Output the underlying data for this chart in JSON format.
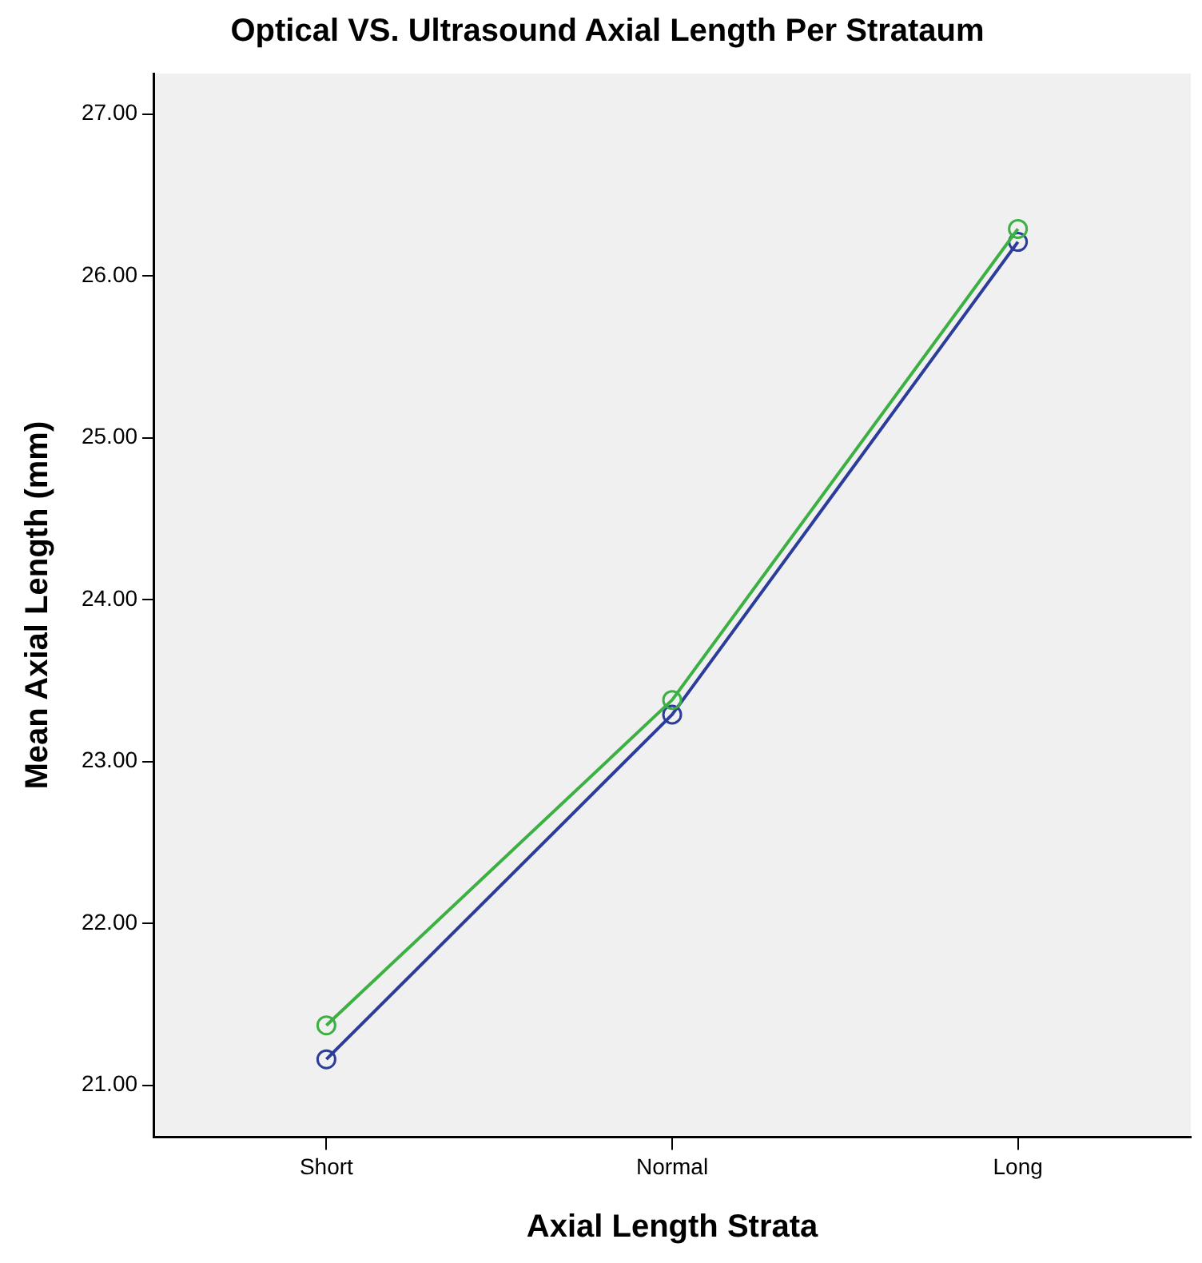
{
  "chart_data": {
    "type": "line",
    "title": "Optical VS. Ultrasound Axial Length Per Strataum",
    "xlabel": "Axial Length Strata",
    "ylabel": "Mean Axial Length (mm)",
    "categories": [
      "Short",
      "Normal",
      "Long"
    ],
    "series": [
      {
        "color": "#3cb043",
        "values": [
          21.37,
          23.38,
          26.29
        ]
      },
      {
        "color": "#2b3c9a",
        "values": [
          21.16,
          23.29,
          26.21
        ]
      }
    ],
    "ylim": [
      20.68,
      27.25
    ],
    "yticks": [
      {
        "value": 21,
        "label": "21.00"
      },
      {
        "value": 22,
        "label": "22.00"
      },
      {
        "value": 23,
        "label": "23.00"
      },
      {
        "value": 24,
        "label": "24.00"
      },
      {
        "value": 25,
        "label": "25.00"
      },
      {
        "value": 26,
        "label": "26.00"
      },
      {
        "value": 27,
        "label": "27.00"
      }
    ],
    "grid": false,
    "legend": false,
    "marker": "circle",
    "line_style": "solid"
  }
}
